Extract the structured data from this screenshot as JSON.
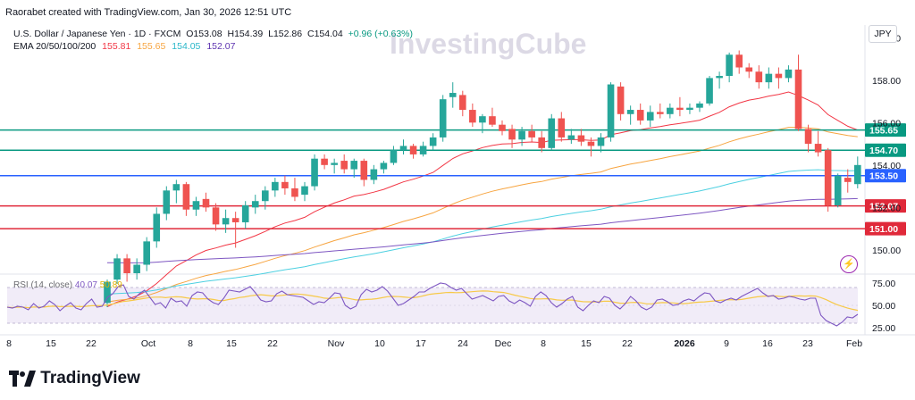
{
  "header": {
    "credit": "Raorabet created with TradingView.com, Jan 30, 2026 12:51 UTC"
  },
  "symbol": {
    "name": "U.S. Dollar / Japanese Yen · 1D · FXCM",
    "o": "O153.08",
    "h": "H154.39",
    "l": "L152.86",
    "c": "C154.04",
    "chg": "+0.96 (+0.63%)"
  },
  "ema": {
    "label": "EMA 20/50/100/200",
    "v20": "155.81",
    "v50": "155.65",
    "v100": "154.05",
    "v200": "152.07"
  },
  "rsi": {
    "label": "RSI (14, close)",
    "v1": "40.07",
    "v2": "50.89"
  },
  "currency": "JPY",
  "watermark": "InvestingCube",
  "brand": "TradingView",
  "colors": {
    "up": "#26a69a",
    "down": "#ef5350",
    "ema20": "#f23645",
    "ema50": "#f7a541",
    "ema100": "#4dd0e1",
    "ema200": "#7e57c2",
    "rsi": "#7e57c2",
    "rsi_ma": "#f7c948",
    "green_line": "#089981",
    "blue_line": "#2962ff",
    "red_line": "#e0293a"
  },
  "chart_data": {
    "type": "candlestick",
    "y_axis": {
      "ticks": [
        150.0,
        152.0,
        154.0,
        156.0,
        158.0,
        160.0
      ],
      "range": [
        148.9,
        160.6
      ]
    },
    "x_axis": {
      "labels": [
        "8",
        "15",
        "22",
        "Oct",
        "8",
        "15",
        "22",
        "Nov",
        "10",
        "17",
        "24",
        "Dec",
        "8",
        "15",
        "22",
        "2026",
        "9",
        "16",
        "23",
        "Feb"
      ]
    },
    "levels": [
      {
        "value": 155.65,
        "label": "155.65",
        "color": "#089981"
      },
      {
        "value": 154.7,
        "label": "154.70",
        "color": "#089981"
      },
      {
        "value": 153.5,
        "label": "153.50",
        "color": "#2962ff"
      },
      {
        "value": 152.07,
        "label": "152.07",
        "color": "#e0293a"
      },
      {
        "value": 151.0,
        "label": "151.00",
        "color": "#e0293a"
      }
    ],
    "candles": [
      [
        147.5,
        148.6,
        147.3,
        148.5
      ],
      [
        148.6,
        149.8,
        148.4,
        149.6
      ],
      [
        149.6,
        149.8,
        148.5,
        148.9
      ],
      [
        148.9,
        149.6,
        148.6,
        149.3
      ],
      [
        149.3,
        150.6,
        149.0,
        150.4
      ],
      [
        150.4,
        152.0,
        150.1,
        151.7
      ],
      [
        151.7,
        153.0,
        151.4,
        152.8
      ],
      [
        152.8,
        153.3,
        152.2,
        153.1
      ],
      [
        153.1,
        153.2,
        151.6,
        151.9
      ],
      [
        151.9,
        152.5,
        151.6,
        152.3
      ],
      [
        152.4,
        152.7,
        151.8,
        152.0
      ],
      [
        152.0,
        152.2,
        150.9,
        151.2
      ],
      [
        151.2,
        151.9,
        150.8,
        151.5
      ],
      [
        151.5,
        151.8,
        150.1,
        151.3
      ],
      [
        151.3,
        152.3,
        151.0,
        152.1
      ],
      [
        152.0,
        152.6,
        151.7,
        152.3
      ],
      [
        152.3,
        153.0,
        151.9,
        152.8
      ],
      [
        152.8,
        153.4,
        152.5,
        153.2
      ],
      [
        153.2,
        153.5,
        152.6,
        152.9
      ],
      [
        152.9,
        153.4,
        152.3,
        152.5
      ],
      [
        152.6,
        153.2,
        152.3,
        153.0
      ],
      [
        153.0,
        154.5,
        152.8,
        154.3
      ],
      [
        154.3,
        154.5,
        153.8,
        154.0
      ],
      [
        154.0,
        154.3,
        153.6,
        154.1
      ],
      [
        154.2,
        154.5,
        153.6,
        153.8
      ],
      [
        153.8,
        154.3,
        153.4,
        154.2
      ],
      [
        154.2,
        154.3,
        153.0,
        153.3
      ],
      [
        153.3,
        154.0,
        153.1,
        153.8
      ],
      [
        153.8,
        154.2,
        153.6,
        154.1
      ],
      [
        154.1,
        154.9,
        154.0,
        154.7
      ],
      [
        154.7,
        155.2,
        154.5,
        154.9
      ],
      [
        154.9,
        155.0,
        154.3,
        154.5
      ],
      [
        154.5,
        155.1,
        154.4,
        154.9
      ],
      [
        154.9,
        155.5,
        154.7,
        155.3
      ],
      [
        155.3,
        157.3,
        155.1,
        157.1
      ],
      [
        157.2,
        157.9,
        156.7,
        157.4
      ],
      [
        157.3,
        157.5,
        156.3,
        156.6
      ],
      [
        156.6,
        156.9,
        155.8,
        156.0
      ],
      [
        156.0,
        156.4,
        155.5,
        156.3
      ],
      [
        156.3,
        156.7,
        155.8,
        155.9
      ],
      [
        155.9,
        156.1,
        155.4,
        155.6
      ],
      [
        155.7,
        155.9,
        154.8,
        155.2
      ],
      [
        155.2,
        155.8,
        154.9,
        155.6
      ],
      [
        155.6,
        155.9,
        155.1,
        155.3
      ],
      [
        155.3,
        155.6,
        154.6,
        154.8
      ],
      [
        154.8,
        156.4,
        154.7,
        156.2
      ],
      [
        156.2,
        156.5,
        155.1,
        155.3
      ],
      [
        155.2,
        155.7,
        155.0,
        155.4
      ],
      [
        155.4,
        155.7,
        154.9,
        155.1
      ],
      [
        155.1,
        155.3,
        154.4,
        154.9
      ],
      [
        154.9,
        155.5,
        154.6,
        155.3
      ],
      [
        155.3,
        157.9,
        155.1,
        157.8
      ],
      [
        157.7,
        157.9,
        156.1,
        156.4
      ],
      [
        156.4,
        156.8,
        155.9,
        156.6
      ],
      [
        156.6,
        156.9,
        155.9,
        156.1
      ],
      [
        156.1,
        156.8,
        155.8,
        156.5
      ],
      [
        156.5,
        156.9,
        156.2,
        156.4
      ],
      [
        156.4,
        156.9,
        156.2,
        156.7
      ],
      [
        156.7,
        157.2,
        156.3,
        156.6
      ],
      [
        156.6,
        156.9,
        156.4,
        156.7
      ],
      [
        156.7,
        157.0,
        156.5,
        156.9
      ],
      [
        156.9,
        158.2,
        156.8,
        158.1
      ],
      [
        158.1,
        158.4,
        157.6,
        158.2
      ],
      [
        158.2,
        159.3,
        157.9,
        159.2
      ],
      [
        159.2,
        159.4,
        158.3,
        158.6
      ],
      [
        158.6,
        158.8,
        158.1,
        158.4
      ],
      [
        158.4,
        158.7,
        157.6,
        157.9
      ],
      [
        157.9,
        158.6,
        157.6,
        158.3
      ],
      [
        158.3,
        158.6,
        157.6,
        158.1
      ],
      [
        158.1,
        158.7,
        157.9,
        158.5
      ],
      [
        158.5,
        159.2,
        155.6,
        155.7
      ],
      [
        155.7,
        155.9,
        154.6,
        155.0
      ],
      [
        155.0,
        155.6,
        154.4,
        154.6
      ],
      [
        154.7,
        154.8,
        151.8,
        152.1
      ],
      [
        152.1,
        153.6,
        152.0,
        153.5
      ],
      [
        153.4,
        153.8,
        152.7,
        153.2
      ],
      [
        153.1,
        154.4,
        152.9,
        154.0
      ]
    ],
    "rsi_axis": {
      "ticks": [
        25.0,
        50.0,
        75.0
      ],
      "range": [
        20,
        82
      ]
    },
    "rsi_values": [
      48,
      47,
      49,
      48,
      45,
      52,
      47,
      49,
      55,
      51,
      44,
      49,
      53,
      47,
      45,
      52,
      57,
      48,
      49,
      59,
      63,
      71,
      73,
      60,
      57,
      63,
      67,
      59,
      51,
      53,
      47,
      58,
      54,
      55,
      49,
      61,
      65,
      64,
      57,
      53,
      51,
      58,
      67,
      66,
      65,
      68,
      71,
      64,
      56,
      54,
      55,
      63,
      66,
      62,
      61,
      60,
      59,
      55,
      51,
      54,
      53,
      58,
      64,
      63,
      50,
      46,
      49,
      62,
      68,
      65,
      67,
      71,
      66,
      58,
      50,
      52,
      56,
      60,
      65,
      65,
      69,
      72,
      75,
      74,
      70,
      67,
      69,
      63,
      57,
      59,
      61,
      58,
      55,
      60,
      61,
      55,
      52,
      56,
      53,
      49,
      60,
      65,
      61,
      53,
      48,
      52,
      57,
      60,
      48,
      44,
      50,
      55,
      53,
      60,
      58,
      50,
      46,
      52,
      60,
      55,
      48,
      45,
      48,
      56,
      57,
      54,
      50,
      51,
      55,
      57,
      55,
      60,
      64,
      63,
      55,
      53,
      56,
      58,
      56,
      60,
      63,
      66,
      69,
      64,
      60,
      61,
      57,
      58,
      60,
      59,
      57,
      56,
      58,
      58,
      39,
      33,
      30,
      27,
      31,
      37,
      36,
      40
    ]
  }
}
